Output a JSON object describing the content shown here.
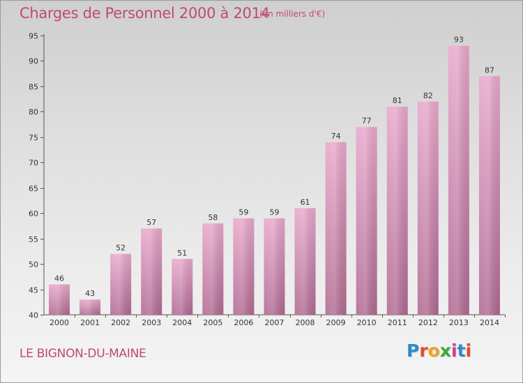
{
  "title": "Charges de Personnel 2000 à 2014",
  "unit_note": "(en milliers d'€)",
  "commune": "LE BIGNON-DU-MAINE",
  "logo": {
    "text": "Proxiti",
    "colors": [
      "#2a8bd0",
      "#e54a2a",
      "#f2a21b",
      "#3aa835",
      "#d43a8c",
      "#2a8bd0",
      "#e54a2a"
    ]
  },
  "colors": {
    "title": "#c04878",
    "bar_top": "#e8a8cc",
    "bar_bottom": "#b06a92"
  },
  "chart_data": {
    "type": "bar",
    "title": "Charges de Personnel 2000 à 2014",
    "subtitle": "(en milliers d'€)",
    "xlabel": "",
    "ylabel": "",
    "categories": [
      "2000",
      "2001",
      "2002",
      "2003",
      "2004",
      "2005",
      "2006",
      "2007",
      "2008",
      "2009",
      "2010",
      "2011",
      "2012",
      "2013",
      "2014"
    ],
    "values": [
      46,
      43,
      52,
      57,
      51,
      58,
      59,
      59,
      61,
      74,
      77,
      81,
      82,
      93,
      87
    ],
    "ylim": [
      40,
      95
    ],
    "yticks": [
      40,
      45,
      50,
      55,
      60,
      65,
      70,
      75,
      80,
      85,
      90,
      95
    ],
    "grid": false,
    "legend": "none"
  }
}
